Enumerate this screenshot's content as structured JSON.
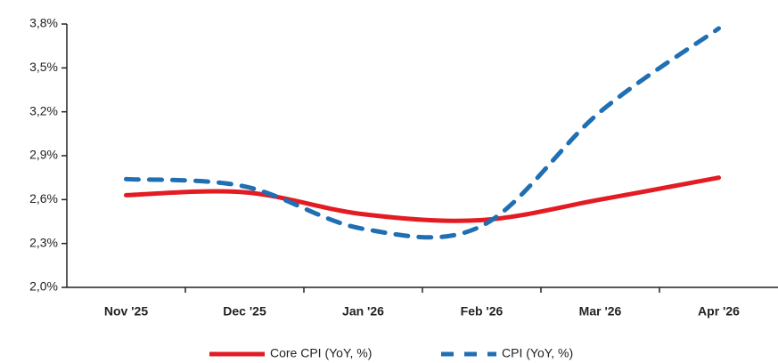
{
  "chart_data": {
    "type": "line",
    "categories": [
      "Nov '25",
      "Dec '25",
      "Jan '26",
      "Feb '26",
      "Mar '26",
      "Apr '26"
    ],
    "series": [
      {
        "name": "Core CPI (YoY, %)",
        "color": "#e31b23",
        "dash": false,
        "values": [
          2.63,
          2.65,
          2.5,
          2.46,
          2.6,
          2.75
        ]
      },
      {
        "name": "CPI (YoY, %)",
        "color": "#1f6fb2",
        "dash": true,
        "values": [
          2.74,
          2.69,
          2.4,
          2.42,
          3.2,
          3.77
        ]
      }
    ],
    "ylim": [
      2.0,
      3.8
    ],
    "yticks": [
      {
        "value": 2.0,
        "label": "2,0%"
      },
      {
        "value": 2.3,
        "label": "2,3%"
      },
      {
        "value": 2.6,
        "label": "2,6%"
      },
      {
        "value": 2.9,
        "label": "2,9%"
      },
      {
        "value": 3.2,
        "label": "3,2%"
      },
      {
        "value": 3.5,
        "label": "3,5%"
      },
      {
        "value": 3.8,
        "label": "3,8%"
      }
    ],
    "legend": "bottom"
  }
}
